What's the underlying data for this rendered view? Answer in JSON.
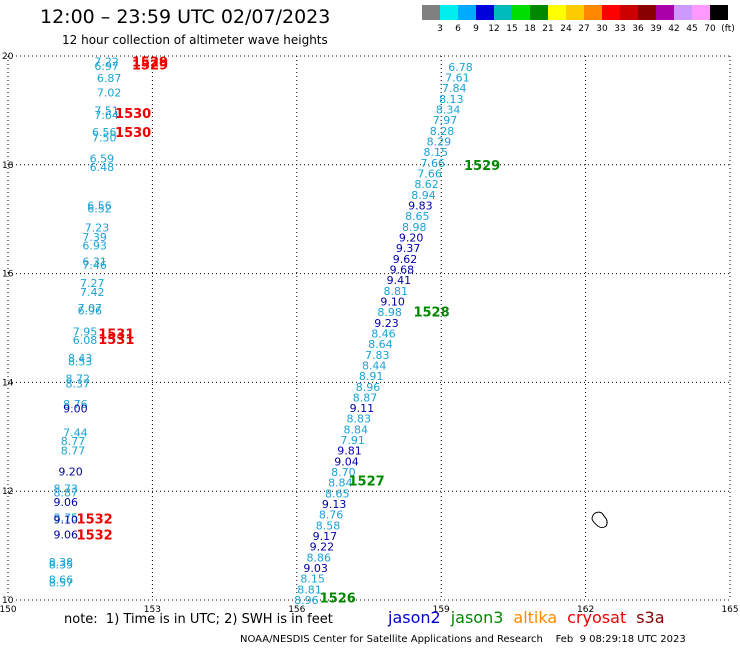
{
  "header": {
    "title": "12:00 – 23:59 UTC 02/07/2023",
    "subtitle": "12 hour collection of altimeter wave heights"
  },
  "color_scale": {
    "labels": [
      "3",
      "6",
      "9",
      "12",
      "15",
      "18",
      "21",
      "24",
      "27",
      "30",
      "33",
      "36",
      "39",
      "42",
      "45",
      "70",
      "(ft)"
    ],
    "colors": [
      "#808080",
      "#00eeee",
      "#00aaff",
      "#0000dd",
      "#00bbbb",
      "#00dd00",
      "#008800",
      "#ffff00",
      "#ffcc00",
      "#ff8800",
      "#ff0000",
      "#cc0000",
      "#880000",
      "#aa00aa",
      "#cc99ff",
      "#ff99ff",
      "#000000"
    ]
  },
  "footer": {
    "note": "note:  1) Time is in UTC; 2) SWH is in feet",
    "satellites": [
      {
        "name": "jason2",
        "color": "#0000cc"
      },
      {
        "name": "jason3",
        "color": "#008800"
      },
      {
        "name": "altika",
        "color": "#ff8800"
      },
      {
        "name": "cryosat",
        "color": "#ee0000"
      },
      {
        "name": "s3a",
        "color": "#880000"
      }
    ],
    "credit": "NOAA/NESDIS Center for Satellite Applications and Research    Feb  9 08:29:18 UTC 2023"
  },
  "chart_data": {
    "type": "scatter",
    "xlim": [
      150,
      165
    ],
    "ylim": [
      10,
      20
    ],
    "x_ticks": [
      "150",
      "153",
      "156",
      "159",
      "162",
      "165"
    ],
    "y_ticks": [
      "10",
      "12",
      "14",
      "16",
      "18",
      "20"
    ],
    "grid": true,
    "track_east": {
      "lon_start": 156.2,
      "lat_start": 10.0,
      "lon_end": 159.4,
      "lat_end": 19.8,
      "values": [
        "8.96",
        "8.81",
        "8.15",
        "9.03",
        "8.86",
        "9.22",
        "9.17",
        "8.58",
        "8.76",
        "9.13",
        "8.65",
        "8.84",
        "8.70",
        "9.04",
        "9.81",
        "7.91",
        "8.84",
        "8.83",
        "9.11",
        "8.87",
        "8.96",
        "8.91",
        "8.44",
        "7.83",
        "8.64",
        "8.46",
        "9.23",
        "8.98",
        "9.10",
        "8.81",
        "9.41",
        "9.68",
        "9.62",
        "9.37",
        "9.20",
        "8.98",
        "8.65",
        "9.83",
        "8.94",
        "8.62",
        "7.66",
        "7.66",
        "8.15",
        "8.29",
        "8.28",
        "7.97",
        "8.34",
        "8.13",
        "7.84",
        "7.61",
        "6.78"
      ],
      "dark": [
        "9.03",
        "9.22",
        "9.17",
        "9.13",
        "9.81",
        "9.04",
        "9.11",
        "9.23",
        "9.10",
        "9.41",
        "9.68",
        "9.62",
        "9.37",
        "9.20",
        "9.83"
      ]
    },
    "track_west": [
      {
        "v": "7.22",
        "lon": 152.05,
        "lat": 19.9
      },
      {
        "v": "6.97",
        "lon": 152.05,
        "lat": 19.82
      },
      {
        "v": "6.87",
        "lon": 152.1,
        "lat": 19.6
      },
      {
        "v": "7.02",
        "lon": 152.1,
        "lat": 19.33
      },
      {
        "v": "7.51",
        "lon": 152.05,
        "lat": 19.0
      },
      {
        "v": "7.64",
        "lon": 152.05,
        "lat": 18.92
      },
      {
        "v": "6.56",
        "lon": 152.0,
        "lat": 18.6
      },
      {
        "v": "7.50",
        "lon": 152.0,
        "lat": 18.5
      },
      {
        "v": "6.59",
        "lon": 151.95,
        "lat": 18.12
      },
      {
        "v": "6.48",
        "lon": 151.95,
        "lat": 17.96
      },
      {
        "v": "6.56",
        "lon": 151.9,
        "lat": 17.25
      },
      {
        "v": "6.52",
        "lon": 151.9,
        "lat": 17.2
      },
      {
        "v": "7.23",
        "lon": 151.85,
        "lat": 16.85
      },
      {
        "v": "7.39",
        "lon": 151.8,
        "lat": 16.67
      },
      {
        "v": "6.93",
        "lon": 151.8,
        "lat": 16.52
      },
      {
        "v": "6.31",
        "lon": 151.8,
        "lat": 16.22
      },
      {
        "v": "7.46",
        "lon": 151.8,
        "lat": 16.16
      },
      {
        "v": "7.27",
        "lon": 151.75,
        "lat": 15.83
      },
      {
        "v": "7.42",
        "lon": 151.75,
        "lat": 15.66
      },
      {
        "v": "7.07",
        "lon": 151.7,
        "lat": 15.37
      },
      {
        "v": "6.96",
        "lon": 151.7,
        "lat": 15.32
      },
      {
        "v": "7.95",
        "lon": 151.6,
        "lat": 14.94
      },
      {
        "v": "6.08",
        "lon": 151.6,
        "lat": 14.78
      },
      {
        "v": "8.43",
        "lon": 151.5,
        "lat": 14.45
      },
      {
        "v": "8.53",
        "lon": 151.5,
        "lat": 14.38
      },
      {
        "v": "8.72",
        "lon": 151.45,
        "lat": 14.07
      },
      {
        "v": "8.37",
        "lon": 151.45,
        "lat": 13.98
      },
      {
        "v": "8.76",
        "lon": 151.4,
        "lat": 13.6
      },
      {
        "v": "9.00",
        "lon": 151.4,
        "lat": 13.52
      },
      {
        "v": "7.44",
        "lon": 151.4,
        "lat": 13.08
      },
      {
        "v": "8.77",
        "lon": 151.35,
        "lat": 12.92
      },
      {
        "v": "8.77",
        "lon": 151.35,
        "lat": 12.75
      },
      {
        "v": "9.20",
        "lon": 151.3,
        "lat": 12.36
      },
      {
        "v": "8.73",
        "lon": 151.2,
        "lat": 12.05
      },
      {
        "v": "8.87",
        "lon": 151.2,
        "lat": 11.98
      },
      {
        "v": "9.06",
        "lon": 151.2,
        "lat": 11.8
      },
      {
        "v": "8.75",
        "lon": 151.2,
        "lat": 11.52
      },
      {
        "v": "9.10",
        "lon": 151.2,
        "lat": 11.48
      },
      {
        "v": "9.06",
        "lon": 151.2,
        "lat": 11.2
      },
      {
        "v": "8.38",
        "lon": 151.1,
        "lat": 10.7
      },
      {
        "v": "8.35",
        "lon": 151.1,
        "lat": 10.65
      },
      {
        "v": "8.66",
        "lon": 151.1,
        "lat": 10.38
      },
      {
        "v": "8.57",
        "lon": 151.1,
        "lat": 10.32
      }
    ],
    "time_labels": [
      {
        "t": "1529",
        "lon": 152.95,
        "lat": 19.9,
        "color": "#ee0000"
      },
      {
        "t": "1529",
        "lon": 152.95,
        "lat": 19.84,
        "color": "#ee0000"
      },
      {
        "t": "1530",
        "lon": 152.6,
        "lat": 18.95,
        "color": "#ee0000"
      },
      {
        "t": "1530",
        "lon": 152.6,
        "lat": 18.6,
        "color": "#ee0000"
      },
      {
        "t": "1531",
        "lon": 152.25,
        "lat": 14.9,
        "color": "#ee0000"
      },
      {
        "t": "1531",
        "lon": 152.25,
        "lat": 14.8,
        "color": "#ee0000"
      },
      {
        "t": "1532",
        "lon": 151.8,
        "lat": 11.5,
        "color": "#ee0000"
      },
      {
        "t": "1532",
        "lon": 151.8,
        "lat": 11.2,
        "color": "#ee0000"
      },
      {
        "t": "1526",
        "lon": 156.85,
        "lat": 10.05,
        "color": "#008800"
      },
      {
        "t": "1527",
        "lon": 157.45,
        "lat": 12.2,
        "color": "#008800"
      },
      {
        "t": "1528",
        "lon": 158.8,
        "lat": 15.3,
        "color": "#008800"
      },
      {
        "t": "1529",
        "lon": 159.85,
        "lat": 18.0,
        "color": "#008800"
      }
    ],
    "coastline_island": {
      "lon": 162.3,
      "lat": 11.45
    }
  }
}
